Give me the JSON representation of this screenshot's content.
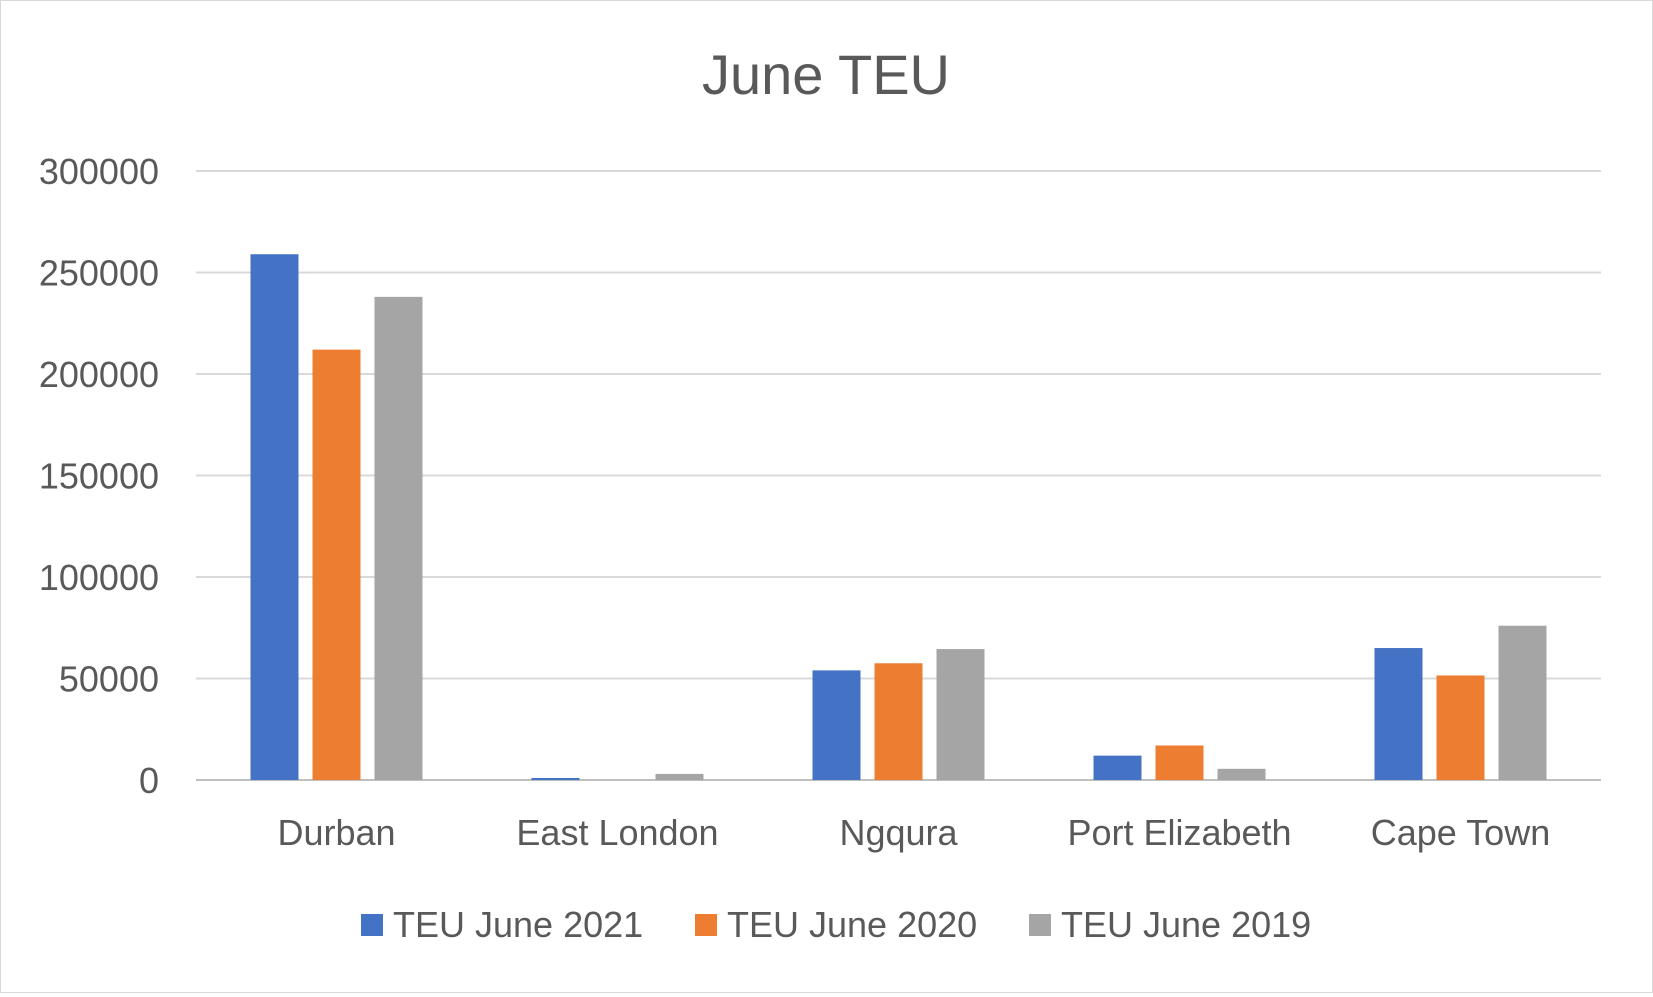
{
  "chart_data": {
    "type": "bar",
    "title": "June TEU",
    "categories": [
      "Durban",
      "East London",
      "Ngqura",
      "Port Elizabeth",
      "Cape Town"
    ],
    "series": [
      {
        "name": "TEU June 2021",
        "color": "#4472C4",
        "values": [
          259000,
          1000,
          54000,
          12000,
          65000
        ]
      },
      {
        "name": "TEU June 2020",
        "color": "#ED7D31",
        "values": [
          212000,
          0,
          57500,
          17000,
          51500
        ]
      },
      {
        "name": "TEU June 2019",
        "color": "#A5A5A5",
        "values": [
          238000,
          3000,
          64500,
          5500,
          76000
        ]
      }
    ],
    "y_ticks": [
      "0",
      "50000",
      "100000",
      "150000",
      "200000",
      "250000",
      "300000"
    ],
    "ylim": [
      0,
      300000
    ],
    "grid": true,
    "legend_position": "bottom"
  }
}
